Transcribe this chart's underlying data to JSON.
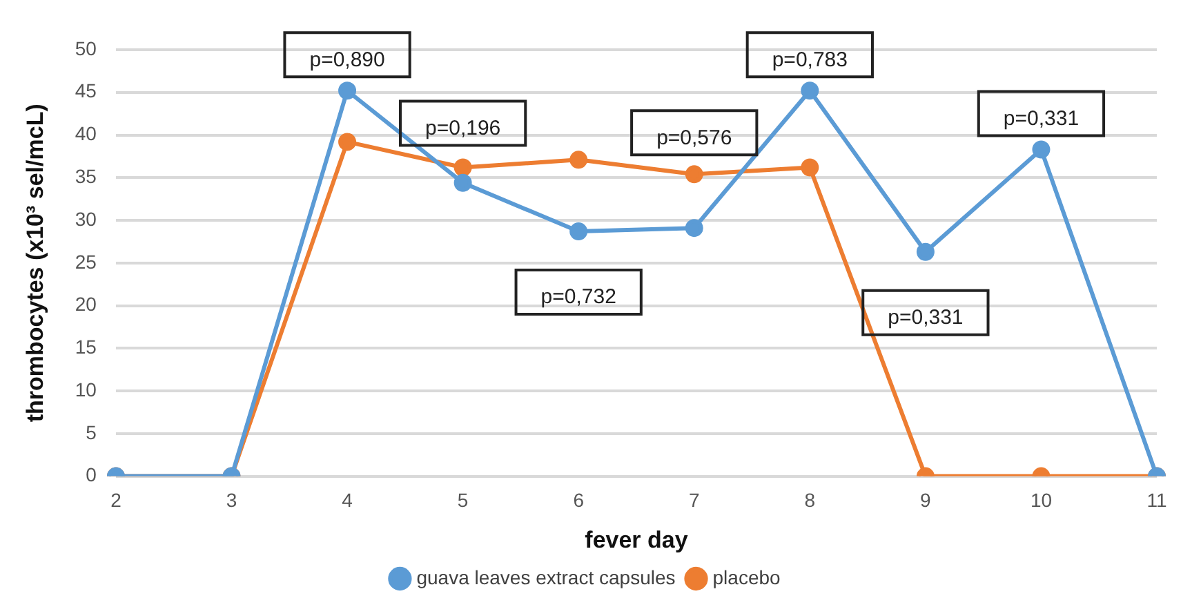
{
  "chart_data": {
    "type": "line",
    "xlabel": "fever day",
    "ylabel": "thrombocytes (x10³ sel/mcL)",
    "categories": [
      "2",
      "3",
      "4",
      "5",
      "6",
      "7",
      "8",
      "9",
      "10",
      "11"
    ],
    "series": [
      {
        "name": "guava leaves extract capsules",
        "color": "#5b9bd5",
        "values": [
          0,
          0,
          45.2,
          34.4,
          28.7,
          29.1,
          45.2,
          26.3,
          38.3,
          0
        ]
      },
      {
        "name": "placebo",
        "color": "#ed7d31",
        "values": [
          0,
          0,
          39.2,
          36.2,
          37.1,
          35.4,
          36.2,
          0,
          0,
          0
        ]
      }
    ],
    "ylim": [
      0,
      50
    ],
    "yticks": [
      0,
      5,
      10,
      15,
      20,
      25,
      30,
      35,
      40,
      45,
      50
    ],
    "grid": "y",
    "legend": "bottom",
    "marker": "circle",
    "line_style": "solid",
    "annotations": [
      {
        "text": "p=0,890",
        "x": "4",
        "y": 45.2
      },
      {
        "text": "p=0,196",
        "x": "5",
        "y": 36.2
      },
      {
        "text": "p=0,732",
        "x": "6",
        "y": 28.7
      },
      {
        "text": "p=0,576",
        "x": "7",
        "y": 35.4
      },
      {
        "text": "p=0,783",
        "x": "8",
        "y": 45.2
      },
      {
        "text": "p=0,331",
        "x": "9",
        "y": 26.3
      },
      {
        "text": "p=0,331",
        "x": "10",
        "y": 38.3
      }
    ]
  }
}
